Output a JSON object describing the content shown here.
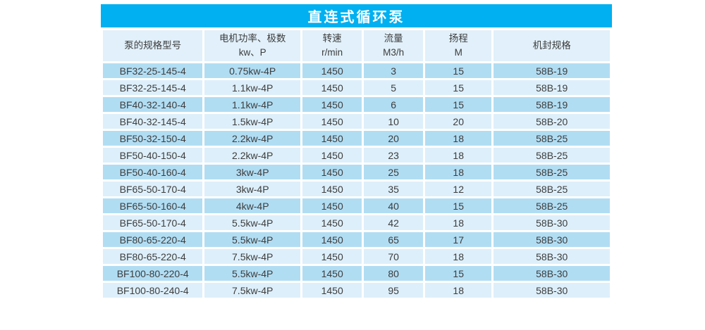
{
  "colors": {
    "accent_blue": "#00b0f0",
    "header_bg": "#e1f0fa",
    "row_odd_bg": "#b1ddf3",
    "row_even_bg": "#ddeffa",
    "text": "#3d3d3d",
    "title_text": "#ffffff",
    "page_bg": "#ffffff",
    "gridline": "#ffffff"
  },
  "chart_data": {
    "type": "table",
    "title": "直连式循环泵",
    "columns": [
      {
        "id": "model",
        "lines": [
          "泵的规格型号"
        ]
      },
      {
        "id": "motor",
        "lines": [
          "电机功率、极数",
          "kw、P"
        ]
      },
      {
        "id": "speed",
        "lines": [
          "转速",
          "r/min"
        ]
      },
      {
        "id": "flow",
        "lines": [
          "流量",
          "M3/h"
        ]
      },
      {
        "id": "head",
        "lines": [
          "扬程",
          "M"
        ]
      },
      {
        "id": "seal",
        "lines": [
          "机封规格"
        ]
      }
    ],
    "rows": [
      [
        "BF32-25-145-4",
        "0.75kw-4P",
        "1450",
        "3",
        "15",
        "58B-19"
      ],
      [
        "BF32-25-145-4",
        "1.1kw-4P",
        "1450",
        "5",
        "15",
        "58B-19"
      ],
      [
        "BF40-32-140-4",
        "1.1kw-4P",
        "1450",
        "6",
        "15",
        "58B-19"
      ],
      [
        "BF40-32-145-4",
        "1.5kw-4P",
        "1450",
        "10",
        "20",
        "58B-20"
      ],
      [
        "BF50-32-150-4",
        "2.2kw-4P",
        "1450",
        "20",
        "18",
        "58B-25"
      ],
      [
        "BF50-40-150-4",
        "2.2kw-4P",
        "1450",
        "23",
        "18",
        "58B-25"
      ],
      [
        "BF50-40-160-4",
        "3kw-4P",
        "1450",
        "25",
        "18",
        "58B-25"
      ],
      [
        "BF65-50-170-4",
        "3kw-4P",
        "1450",
        "35",
        "12",
        "58B-25"
      ],
      [
        "BF65-50-160-4",
        "4kw-4P",
        "1450",
        "40",
        "15",
        "58B-25"
      ],
      [
        "BF65-50-170-4",
        "5.5kw-4P",
        "1450",
        "42",
        "18",
        "58B-30"
      ],
      [
        "BF80-65-220-4",
        "5.5kw-4P",
        "1450",
        "65",
        "17",
        "58B-30"
      ],
      [
        "BF80-65-220-4",
        "7.5kw-4P",
        "1450",
        "70",
        "18",
        "58B-30"
      ],
      [
        "BF100-80-220-4",
        "5.5kw-4P",
        "1450",
        "80",
        "15",
        "58B-30"
      ],
      [
        "BF100-80-240-4",
        "7.5kw-4P",
        "1450",
        "95",
        "18",
        "58B-30"
      ]
    ],
    "layout": {
      "column_width_percents": [
        20.0,
        19.2,
        12.1,
        12.0,
        13.5,
        23.2
      ],
      "grid": "white 3px separators",
      "row_striping": "odd rows darker blue, even rows lighter blue"
    }
  }
}
